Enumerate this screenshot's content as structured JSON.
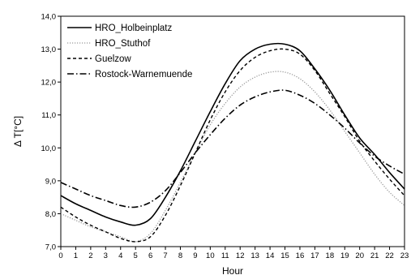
{
  "chart_data": {
    "type": "line",
    "xlabel": "Hour",
    "ylabel": "Δ T[°C]",
    "xlim": [
      0,
      23
    ],
    "ylim": [
      7.0,
      14.0
    ],
    "x_ticks": [
      0,
      1,
      2,
      3,
      4,
      5,
      6,
      7,
      8,
      9,
      10,
      11,
      12,
      13,
      14,
      15,
      16,
      17,
      18,
      19,
      20,
      21,
      22,
      23
    ],
    "y_ticks": [
      "7,0",
      "8,0",
      "9,0",
      "10,0",
      "11,0",
      "12,0",
      "13,0",
      "14,0"
    ],
    "legend_position": "top-left",
    "grid": false,
    "x": [
      0,
      1,
      2,
      3,
      4,
      5,
      6,
      7,
      8,
      9,
      10,
      11,
      12,
      13,
      14,
      15,
      16,
      17,
      18,
      19,
      20,
      21,
      22,
      23
    ],
    "series": [
      {
        "name": "HRO_Holbeinplatz",
        "style": "solid",
        "color": "#000000",
        "values": [
          8.55,
          8.3,
          8.1,
          7.9,
          7.75,
          7.65,
          7.85,
          8.5,
          9.3,
          10.2,
          11.1,
          11.95,
          12.65,
          13.0,
          13.15,
          13.15,
          12.95,
          12.4,
          11.75,
          11.0,
          10.3,
          9.8,
          9.25,
          8.75
        ]
      },
      {
        "name": "HRO_Stuthof",
        "style": "dotted",
        "color": "#999999",
        "values": [
          8.0,
          7.8,
          7.6,
          7.45,
          7.3,
          7.15,
          7.4,
          8.1,
          8.95,
          9.85,
          10.7,
          11.35,
          11.85,
          12.15,
          12.3,
          12.3,
          12.1,
          11.7,
          11.15,
          10.5,
          9.85,
          9.2,
          8.65,
          8.25
        ]
      },
      {
        "name": "Guelzow",
        "style": "dashed",
        "color": "#000000",
        "values": [
          8.2,
          7.9,
          7.65,
          7.45,
          7.25,
          7.15,
          7.3,
          7.95,
          8.85,
          9.85,
          10.85,
          11.7,
          12.35,
          12.75,
          12.95,
          13.0,
          12.85,
          12.35,
          11.65,
          10.95,
          10.2,
          9.6,
          9.05,
          8.55
        ]
      },
      {
        "name": "Rostock-Warnemuende",
        "style": "dashdot",
        "color": "#000000",
        "values": [
          8.95,
          8.75,
          8.55,
          8.4,
          8.25,
          8.2,
          8.35,
          8.7,
          9.25,
          9.85,
          10.4,
          10.9,
          11.3,
          11.55,
          11.7,
          11.75,
          11.6,
          11.35,
          11.0,
          10.6,
          10.15,
          9.75,
          9.45,
          9.2
        ]
      }
    ]
  }
}
